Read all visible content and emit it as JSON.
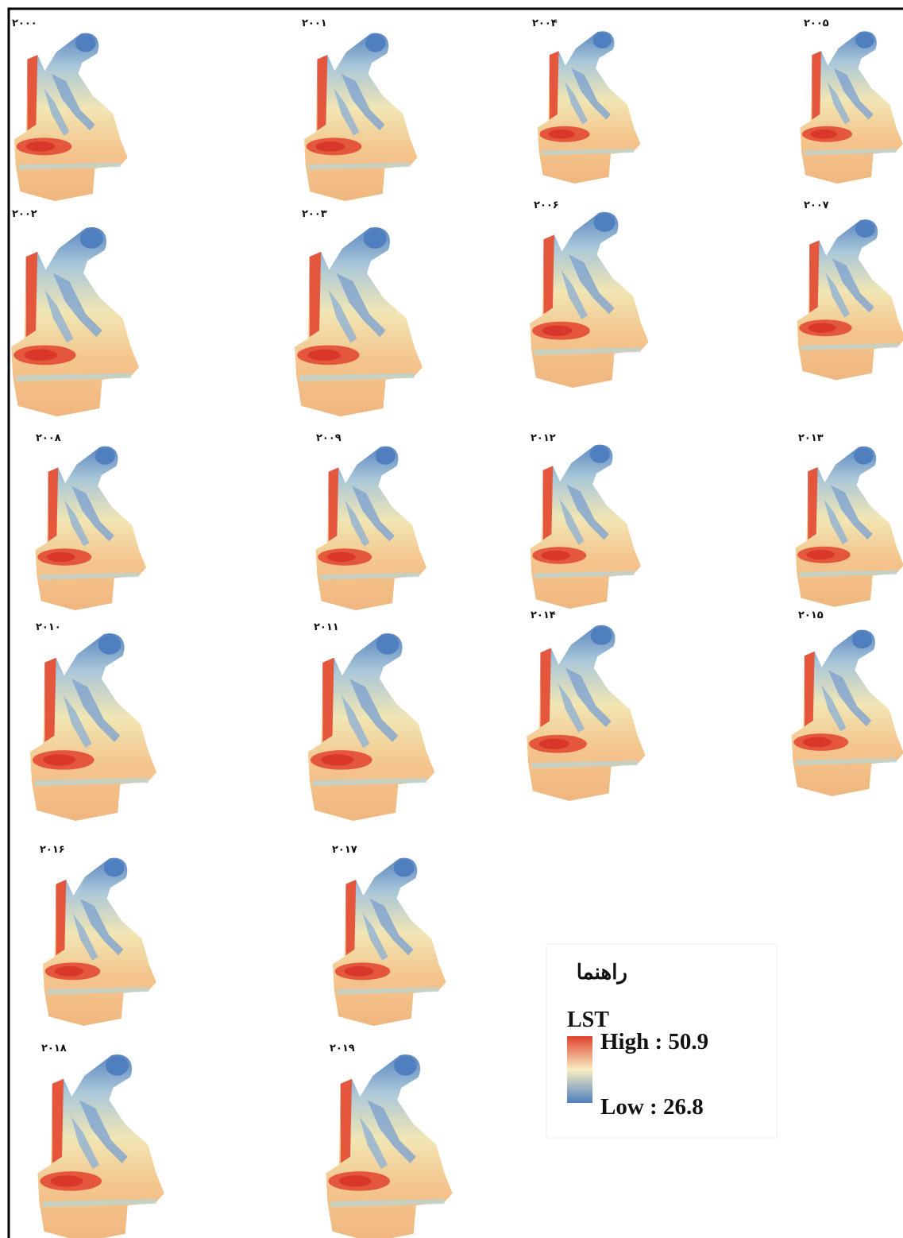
{
  "maps": [
    {
      "label": "۲۰۰۰"
    },
    {
      "label": "۲۰۰۱"
    },
    {
      "label": "۲۰۰۴"
    },
    {
      "label": "۲۰۰۵"
    },
    {
      "label": "۲۰۰۲"
    },
    {
      "label": "۲۰۰۳"
    },
    {
      "label": "۲۰۰۶"
    },
    {
      "label": "۲۰۰۷"
    },
    {
      "label": "۲۰۰۸"
    },
    {
      "label": "۲۰۰۹"
    },
    {
      "label": "۲۰۱۲"
    },
    {
      "label": "۲۰۱۳"
    },
    {
      "label": "۲۰۱۰"
    },
    {
      "label": "۲۰۱۱"
    },
    {
      "label": "۲۰۱۴"
    },
    {
      "label": "۲۰۱۵"
    },
    {
      "label": "۲۰۱۶"
    },
    {
      "label": "۲۰۱۷"
    },
    {
      "label": "۲۰۱۸"
    },
    {
      "label": "۲۰۱۹"
    }
  ],
  "legend": {
    "title": "راهنما",
    "layer": "LST",
    "high": "High : 50.9",
    "low": "Low : 26.8"
  }
}
